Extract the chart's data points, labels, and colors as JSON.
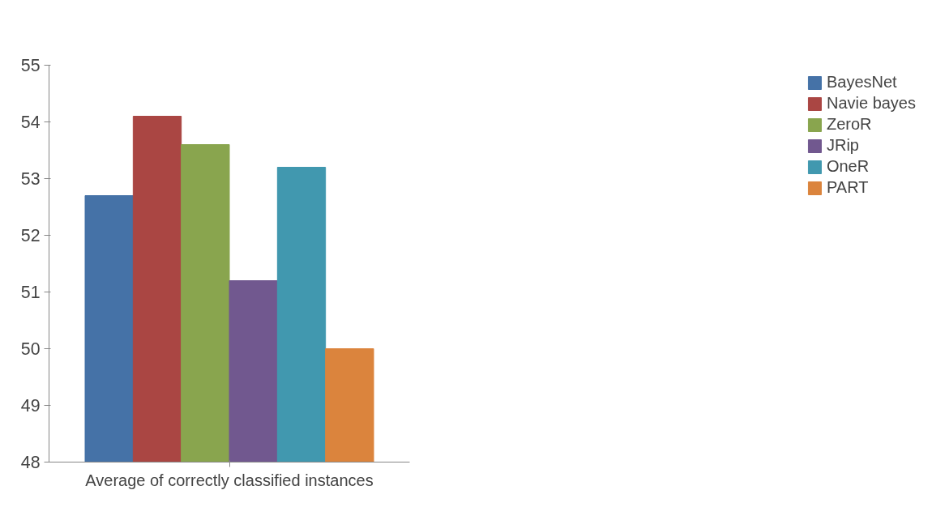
{
  "chart_data": {
    "type": "bar",
    "categories": [
      "Average of correctly classified instances"
    ],
    "series": [
      {
        "name": "BayesNet",
        "color": "#4572a7",
        "values": [
          52.7
        ]
      },
      {
        "name": "Navie bayes",
        "color": "#aa4643",
        "values": [
          54.1
        ]
      },
      {
        "name": "ZeroR",
        "color": "#89a54e",
        "values": [
          53.6
        ]
      },
      {
        "name": "JRip",
        "color": "#71588f",
        "values": [
          51.2
        ]
      },
      {
        "name": "OneR",
        "color": "#4198af",
        "values": [
          53.2
        ]
      },
      {
        "name": "PART",
        "color": "#db843d",
        "values": [
          50.0
        ]
      }
    ],
    "ylim": [
      48,
      55
    ],
    "yticks": [
      48,
      49,
      50,
      51,
      52,
      53,
      54,
      55
    ],
    "grid": false,
    "legend": "right"
  }
}
